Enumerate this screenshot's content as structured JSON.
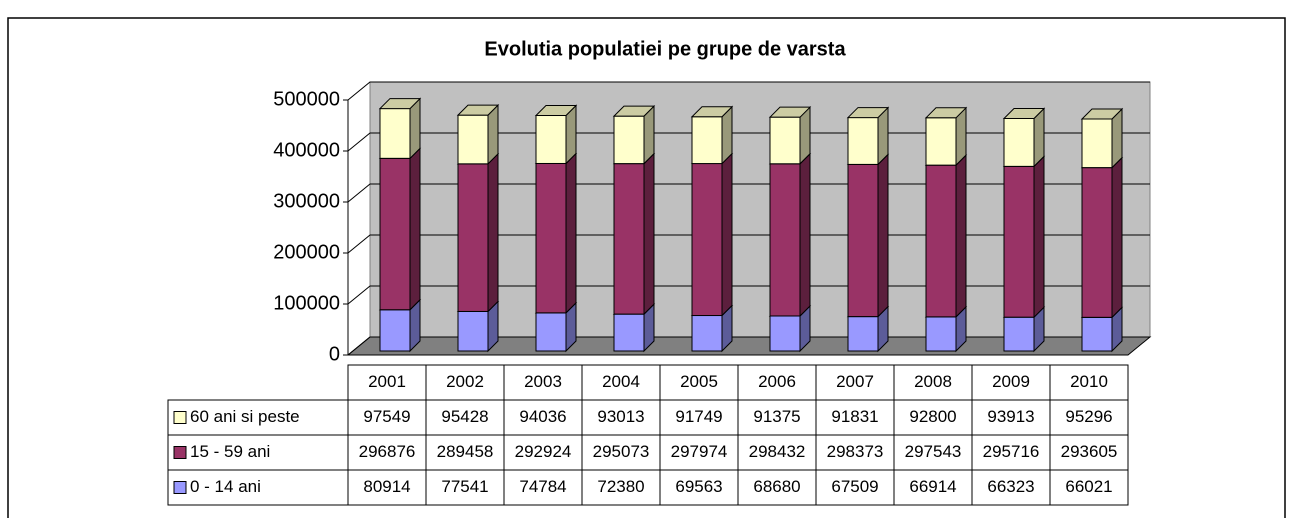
{
  "chart_data": {
    "type": "bar",
    "stacked": true,
    "title": "Evolutia populatiei pe grupe de varsta",
    "categories": [
      "2001",
      "2002",
      "2003",
      "2004",
      "2005",
      "2006",
      "2007",
      "2008",
      "2009",
      "2010"
    ],
    "series": [
      {
        "name": "0 - 14 ani",
        "color": "#9999ff",
        "values": [
          80914,
          77541,
          74784,
          72380,
          69563,
          68680,
          67509,
          66914,
          66323,
          66021
        ]
      },
      {
        "name": "15 - 59 ani",
        "color": "#993366",
        "values": [
          296876,
          289458,
          292924,
          295073,
          297974,
          298432,
          298373,
          297543,
          295716,
          293605
        ]
      },
      {
        "name": "60 ani si peste",
        "color": "#ffffcc",
        "values": [
          97549,
          95428,
          94036,
          93013,
          91749,
          91375,
          91831,
          92800,
          93913,
          95296
        ]
      }
    ],
    "ylim": [
      0,
      500000
    ],
    "yticks": [
      0,
      100000,
      200000,
      300000,
      400000,
      500000
    ],
    "grid": true
  }
}
